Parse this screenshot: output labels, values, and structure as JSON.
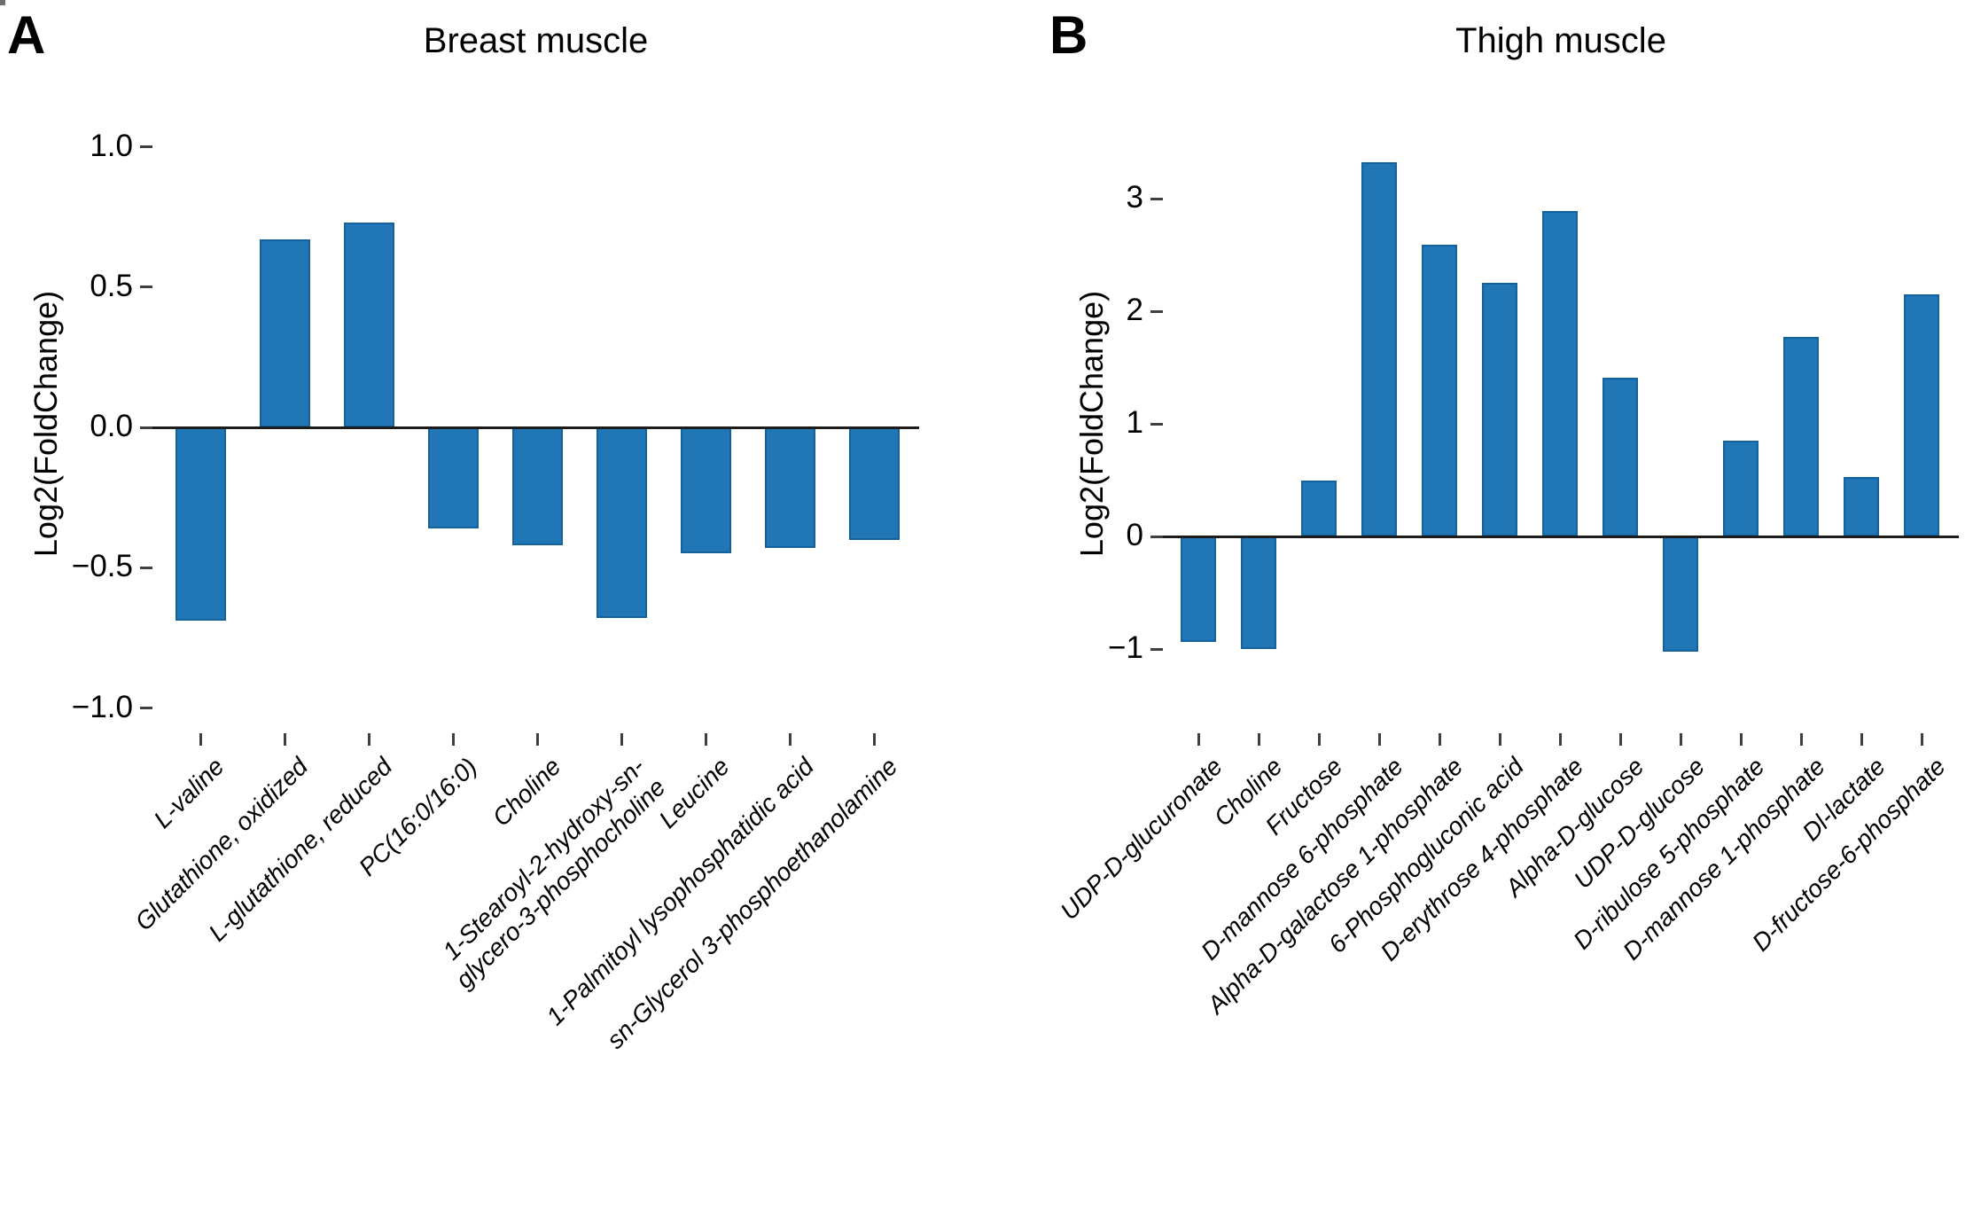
{
  "figure": {
    "panels": [
      {
        "panel_letter": "A",
        "title": "Breast muscle",
        "ylabel": "Log2(FoldChange)"
      },
      {
        "panel_letter": "B",
        "title": "Thigh muscle",
        "ylabel": "Log2(FoldChange)"
      }
    ]
  },
  "chart_data": [
    {
      "type": "bar",
      "panel": "A",
      "title": "Breast muscle",
      "xlabel": "",
      "ylabel": "Log2(FoldChange)",
      "categories": [
        "L-valine",
        "Glutathione, oxidized",
        "L-glutathione, reduced",
        "PC(16:0/16:0)",
        "Choline",
        "1-Stearoyl-2-hydroxy-sn-\nglycero-3-phosphocholine",
        "Leucine",
        "1-Palmitoyl lysophosphatidic acid",
        "sn-Glycerol 3-phosphoethanolamine"
      ],
      "values": [
        -0.69,
        0.67,
        0.73,
        -0.36,
        -0.42,
        -0.68,
        -0.45,
        -0.43,
        -0.4
      ],
      "yticks": [
        1.0,
        0.5,
        0.0,
        -0.5,
        -1.0
      ],
      "ytick_labels": [
        "1.0",
        "0.5",
        "0.0",
        "−0.5",
        "−1.0"
      ],
      "ylim": [
        -1.09,
        1.11
      ],
      "grid": false,
      "legend": "none",
      "bar_color": "#2177b5"
    },
    {
      "type": "bar",
      "panel": "B",
      "title": "Thigh muscle",
      "xlabel": "",
      "ylabel": "Log2(FoldChange)",
      "categories": [
        "UDP-D-glucuronate",
        "Choline",
        "Fructose",
        "D-mannose 6-phosphate",
        "Alpha-D-galactose 1-phosphate",
        "6-Phosphogluconic acid",
        "D-erythrose 4-phosphate",
        "Alpha-D-glucose",
        "UDP-D-glucose",
        "D-ribulose 5-phosphate",
        "D-mannose 1-phosphate",
        "Dl-lactate",
        "D-fructose-6-phosphate"
      ],
      "values": [
        -0.94,
        -1.0,
        0.5,
        3.32,
        2.59,
        2.25,
        2.89,
        1.41,
        -1.02,
        0.85,
        1.77,
        0.53,
        2.15
      ],
      "yticks": [
        3,
        2,
        1,
        0,
        -1
      ],
      "ytick_labels": [
        "3",
        "2",
        "1",
        "0",
        "−1"
      ],
      "ylim": [
        -1.75,
        3.74
      ],
      "grid": false,
      "legend": "none",
      "bar_color": "#2177b5"
    }
  ]
}
